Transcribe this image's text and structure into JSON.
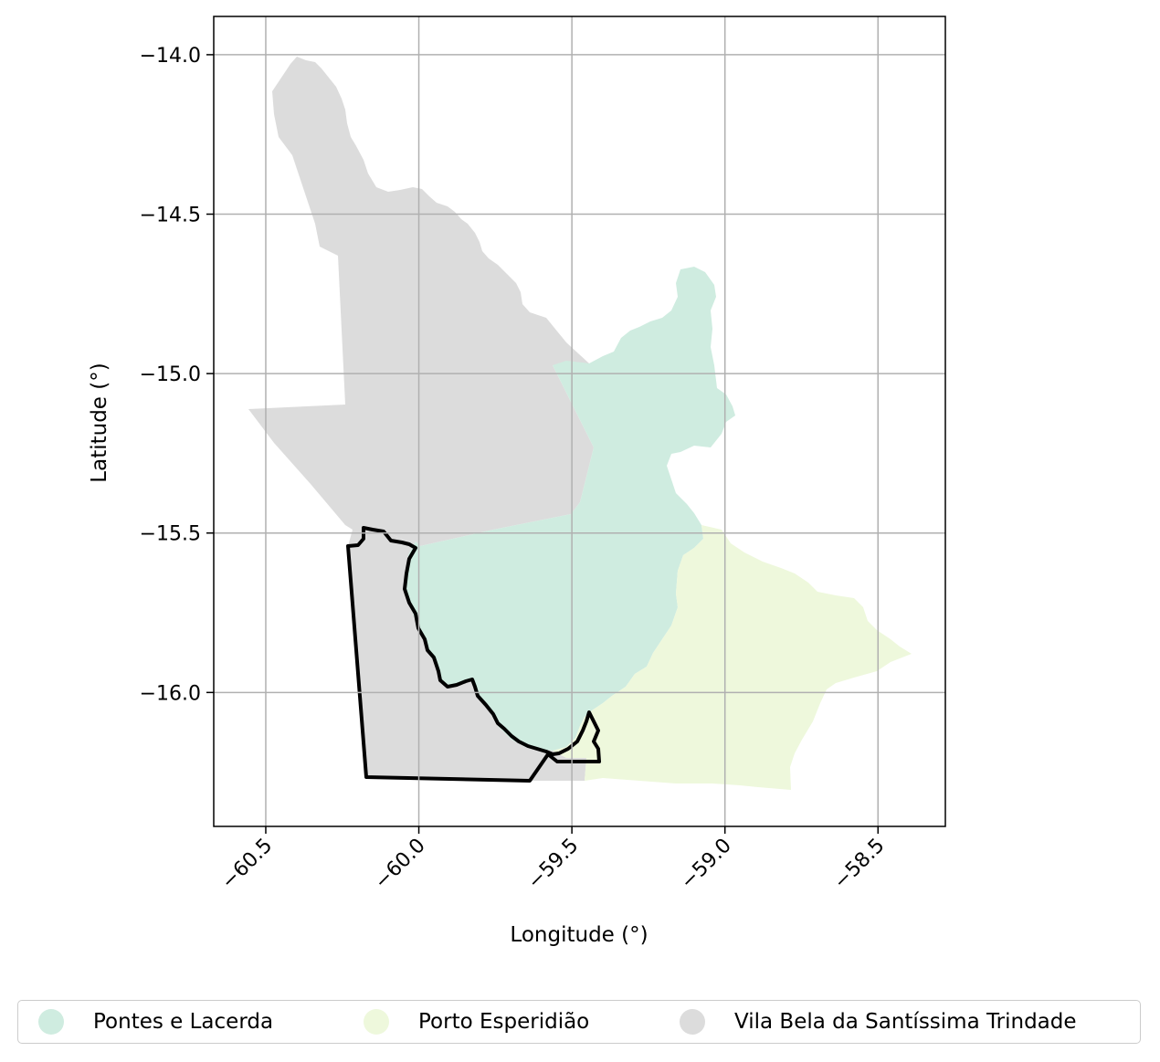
{
  "map": {
    "x_label": "Longitude (°)",
    "y_label": "Latitude (°)",
    "x_ticks": [
      "−60.5",
      "−60.0",
      "−59.5",
      "−59.0",
      "−58.5"
    ],
    "y_ticks": [
      "−14.0",
      "−14.5",
      "−15.0",
      "−15.5",
      "−16.0"
    ],
    "x_tick_values": [
      -60.5,
      -60.0,
      -59.5,
      -59.0,
      -58.5
    ],
    "y_tick_values": [
      -14.0,
      -14.5,
      -15.0,
      -15.5,
      -16.0
    ],
    "xlim": [
      -60.67,
      -58.28
    ],
    "ylim": [
      -16.42,
      -13.88
    ],
    "grid": true,
    "regions": [
      {
        "name": "Pontes e Lacerda",
        "color": "#cfece0"
      },
      {
        "name": "Porto Esperidião",
        "color": "#eef8dc"
      },
      {
        "name": "Vila Bela da Santíssima Trindade",
        "color": "#dcdcdc"
      }
    ],
    "highlight_outline": "black"
  },
  "legend": {
    "items": [
      {
        "label": "Pontes e Lacerda",
        "color": "#cfece0"
      },
      {
        "label": "Porto Esperidião",
        "color": "#eef8dc"
      },
      {
        "label": "Vila Bela da Santíssima Trindade",
        "color": "#dcdcdc"
      }
    ]
  }
}
